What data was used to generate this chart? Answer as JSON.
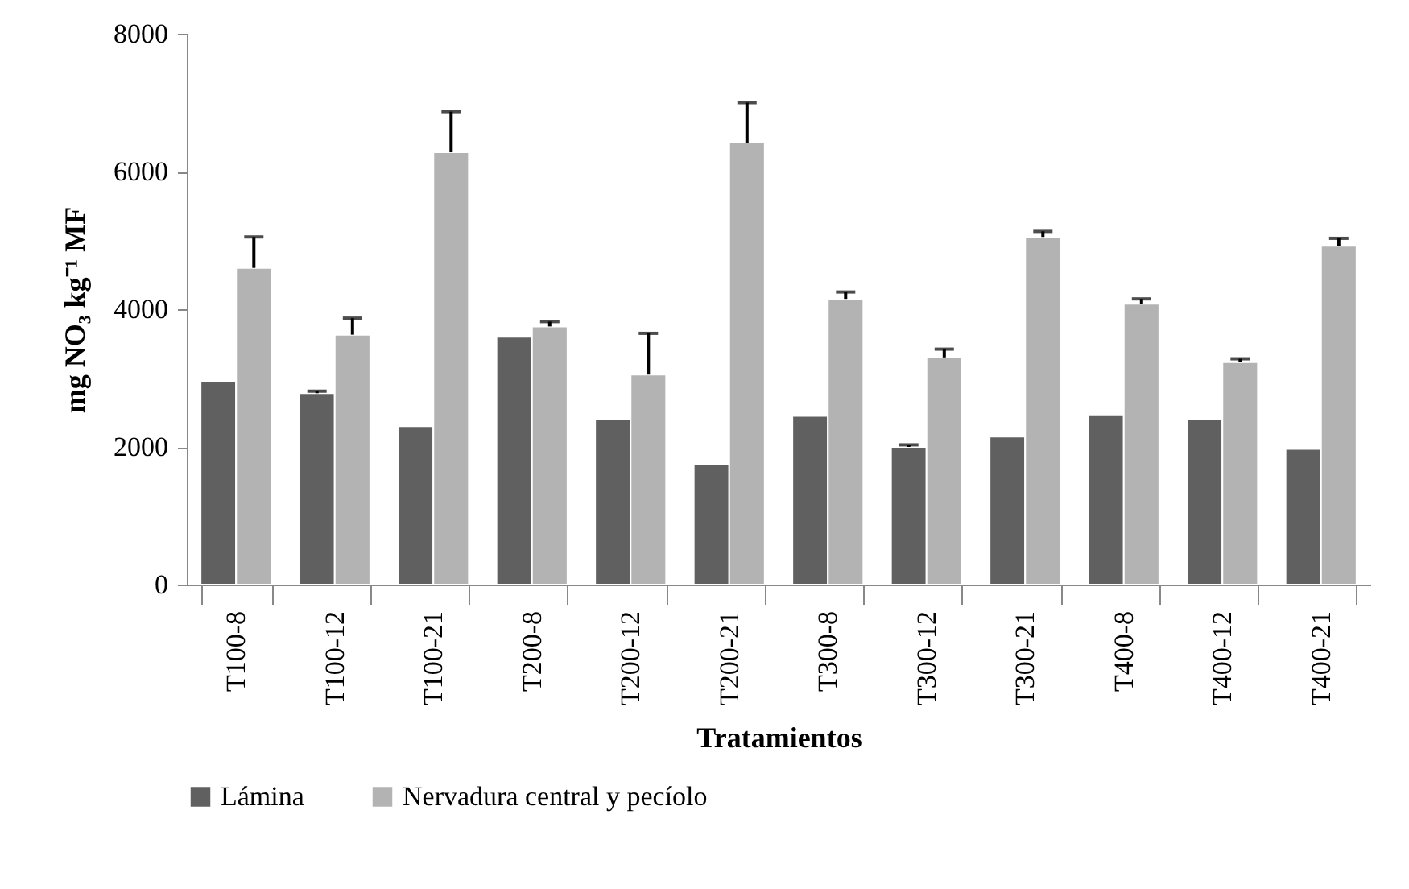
{
  "chart_data": {
    "type": "bar",
    "xlabel": "Tratamientos",
    "ylabel": "mg NO₃ kg⁻¹ MF",
    "categories": [
      "T100-8",
      "T100-12",
      "T100-21",
      "T200-8",
      "T200-12",
      "T200-21",
      "T300-8",
      "T300-12",
      "T300-21",
      "T400-8",
      "T400-12",
      "T400-21"
    ],
    "series": [
      {
        "name": "Lámina",
        "color": "#606060",
        "values": [
          2950,
          2780,
          2300,
          3600,
          2400,
          1750,
          2450,
          2000,
          2150,
          2470,
          2400,
          1970
        ],
        "errors": [
          null,
          30,
          null,
          null,
          null,
          null,
          null,
          30,
          null,
          null,
          null,
          null
        ]
      },
      {
        "name": "Nervadura central y pecíolo",
        "color": "#b3b3b3",
        "values": [
          4600,
          3630,
          6280,
          3750,
          3050,
          6420,
          4150,
          3300,
          5050,
          4080,
          3230,
          4920
        ],
        "errors": [
          450,
          240,
          590,
          70,
          600,
          580,
          100,
          120,
          80,
          70,
          50,
          110
        ]
      }
    ],
    "ylim": [
      0,
      8000
    ],
    "yticks": [
      0,
      2000,
      4000,
      6000,
      8000
    ],
    "grid": false,
    "legend": "bottom"
  }
}
